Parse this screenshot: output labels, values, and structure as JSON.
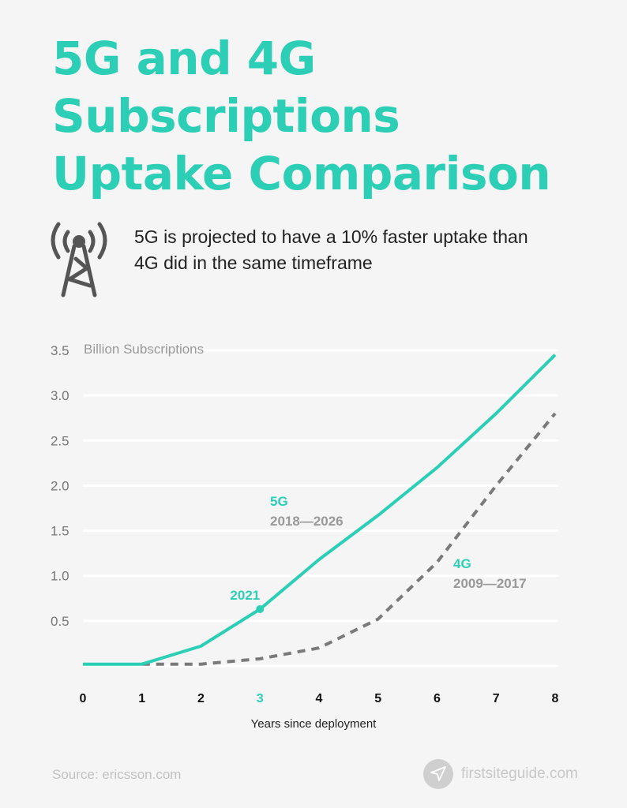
{
  "title_lines": [
    "5G and 4G",
    "Subscriptions",
    "Uptake Comparison"
  ],
  "subtitle_lines": [
    "5G is projected to have a 10% faster uptake than",
    "4G did in the same timeframe"
  ],
  "icon": "cell-tower-icon",
  "colors": {
    "accent": "#2ccfb6",
    "series_4g": "#7a7a7a",
    "grid": "#ffffff",
    "background": "#f5f5f5"
  },
  "chart_data": {
    "type": "line",
    "ylabel": "Billion Subscriptions",
    "xlabel": "Years since deployment",
    "x": [
      0,
      1,
      2,
      3,
      4,
      5,
      6,
      7,
      8
    ],
    "x_ticks": [
      "0",
      "1",
      "2",
      "3",
      "4",
      "5",
      "6",
      "7",
      "8"
    ],
    "highlighted_x_tick": "3",
    "y_ticks": [
      "0.5",
      "1.0",
      "1.5",
      "2.0",
      "2.5",
      "3.0",
      "3.5"
    ],
    "ylim": [
      0,
      3.5
    ],
    "xlim": [
      0,
      8
    ],
    "grid": true,
    "series": [
      {
        "name": "5G",
        "label_period": "2018—2026",
        "style": "solid",
        "color": "#2ccfb6",
        "x": [
          0,
          1,
          2,
          3,
          4,
          5,
          6,
          7,
          8
        ],
        "values": [
          0.02,
          0.02,
          0.22,
          0.63,
          1.18,
          1.67,
          2.2,
          2.8,
          3.45
        ]
      },
      {
        "name": "4G",
        "label_period": "2009—2017",
        "style": "dashed",
        "color": "#7a7a7a",
        "x": [
          1,
          2,
          3,
          4,
          5,
          6,
          7,
          8
        ],
        "values": [
          0.02,
          0.02,
          0.08,
          0.2,
          0.52,
          1.15,
          2.0,
          2.8
        ]
      }
    ],
    "annotations": [
      {
        "text": "2021",
        "x": 3,
        "y": 0.63
      }
    ]
  },
  "footer": {
    "source": "Source: ericsson.com",
    "brand": "firstsiteguide.com"
  }
}
